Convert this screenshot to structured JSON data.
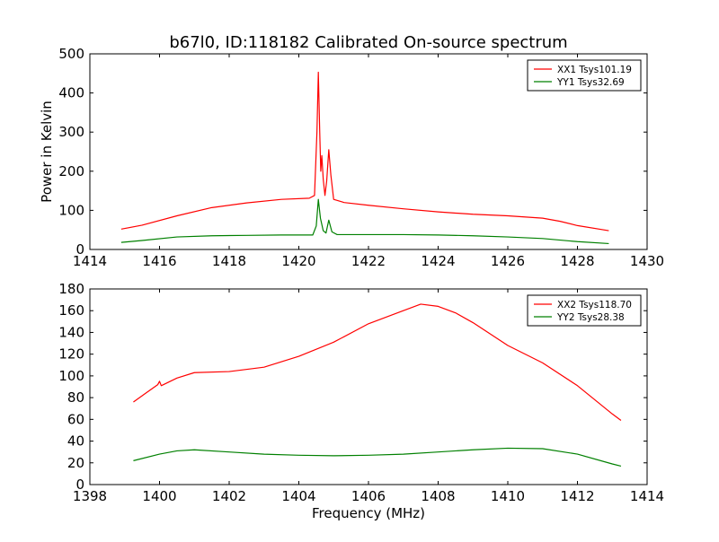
{
  "title": "b67l0, ID:118182 Calibrated On-source spectrum",
  "chart_data": [
    {
      "type": "line",
      "title": "b67l0, ID:118182 Calibrated On-source spectrum",
      "xlabel": "",
      "ylabel": "Power in Kelvin",
      "xlim": [
        1414,
        1430
      ],
      "ylim": [
        0,
        500
      ],
      "xticks": [
        1414,
        1416,
        1418,
        1420,
        1422,
        1424,
        1426,
        1428,
        1430
      ],
      "yticks": [
        0,
        100,
        200,
        300,
        400,
        500
      ],
      "grid": false,
      "legend": "top-right",
      "series": [
        {
          "name": "XX1 Tsys101.19",
          "color": "#ff0000",
          "points": [
            [
              1414.9,
              52
            ],
            [
              1415.5,
              62
            ],
            [
              1416.5,
              86
            ],
            [
              1417.5,
              107
            ],
            [
              1418.5,
              119
            ],
            [
              1419.5,
              128
            ],
            [
              1420.3,
              131
            ],
            [
              1420.45,
              138
            ],
            [
              1420.52,
              300
            ],
            [
              1420.56,
              453
            ],
            [
              1420.6,
              300
            ],
            [
              1420.63,
              200
            ],
            [
              1420.66,
              240
            ],
            [
              1420.7,
              180
            ],
            [
              1420.75,
              138
            ],
            [
              1420.8,
              175
            ],
            [
              1420.86,
              255
            ],
            [
              1420.92,
              190
            ],
            [
              1421.0,
              128
            ],
            [
              1421.3,
              120
            ],
            [
              1422,
              113
            ],
            [
              1423,
              104
            ],
            [
              1424,
              96
            ],
            [
              1425,
              90
            ],
            [
              1426,
              86
            ],
            [
              1427,
              80
            ],
            [
              1427.5,
              72
            ],
            [
              1428,
              61
            ],
            [
              1428.9,
              48
            ]
          ]
        },
        {
          "name": "YY1 Tsys32.69",
          "color": "#008000",
          "points": [
            [
              1414.9,
              18
            ],
            [
              1415.5,
              23
            ],
            [
              1416.5,
              32
            ],
            [
              1417.5,
              35
            ],
            [
              1418.5,
              36
            ],
            [
              1419.5,
              37
            ],
            [
              1420.4,
              37
            ],
            [
              1420.5,
              60
            ],
            [
              1420.56,
              128
            ],
            [
              1420.62,
              80
            ],
            [
              1420.7,
              48
            ],
            [
              1420.78,
              42
            ],
            [
              1420.86,
              75
            ],
            [
              1420.95,
              45
            ],
            [
              1421.1,
              38
            ],
            [
              1422,
              38
            ],
            [
              1423,
              38
            ],
            [
              1424,
              37
            ],
            [
              1425,
              35
            ],
            [
              1426,
              32
            ],
            [
              1427,
              28
            ],
            [
              1428,
              20
            ],
            [
              1428.9,
              15
            ]
          ]
        }
      ]
    },
    {
      "type": "line",
      "title": "",
      "xlabel": "Frequency (MHz)",
      "ylabel": "",
      "xlim": [
        1398,
        1414
      ],
      "ylim": [
        0,
        180
      ],
      "xticks": [
        1398,
        1400,
        1402,
        1404,
        1406,
        1408,
        1410,
        1412,
        1414
      ],
      "yticks": [
        0,
        20,
        40,
        60,
        80,
        100,
        120,
        140,
        160,
        180
      ],
      "grid": false,
      "legend": "top-right",
      "series": [
        {
          "name": "XX2 Tsys118.70",
          "color": "#ff0000",
          "points": [
            [
              1399.25,
              76
            ],
            [
              1399.6,
              84
            ],
            [
              1399.95,
              92
            ],
            [
              1400.0,
              95
            ],
            [
              1400.05,
              91
            ],
            [
              1400.5,
              98
            ],
            [
              1401,
              103
            ],
            [
              1402,
              104
            ],
            [
              1403,
              108
            ],
            [
              1404,
              118
            ],
            [
              1405,
              131
            ],
            [
              1406,
              148
            ],
            [
              1407,
              160
            ],
            [
              1407.5,
              166
            ],
            [
              1408,
              164
            ],
            [
              1408.5,
              158
            ],
            [
              1409,
              149
            ],
            [
              1410,
              128
            ],
            [
              1411,
              112
            ],
            [
              1412,
              91
            ],
            [
              1413,
              65
            ],
            [
              1413.25,
              59
            ]
          ]
        },
        {
          "name": "YY2 Tsys28.38",
          "color": "#008000",
          "points": [
            [
              1399.25,
              22
            ],
            [
              1400,
              28
            ],
            [
              1400.5,
              31
            ],
            [
              1401,
              32
            ],
            [
              1402,
              30
            ],
            [
              1403,
              28
            ],
            [
              1404,
              27
            ],
            [
              1405,
              26.5
            ],
            [
              1406,
              27
            ],
            [
              1407,
              28
            ],
            [
              1408,
              30
            ],
            [
              1409,
              32
            ],
            [
              1410,
              33.5
            ],
            [
              1411,
              33
            ],
            [
              1412,
              28
            ],
            [
              1413,
              19
            ],
            [
              1413.25,
              17
            ]
          ]
        }
      ]
    }
  ]
}
